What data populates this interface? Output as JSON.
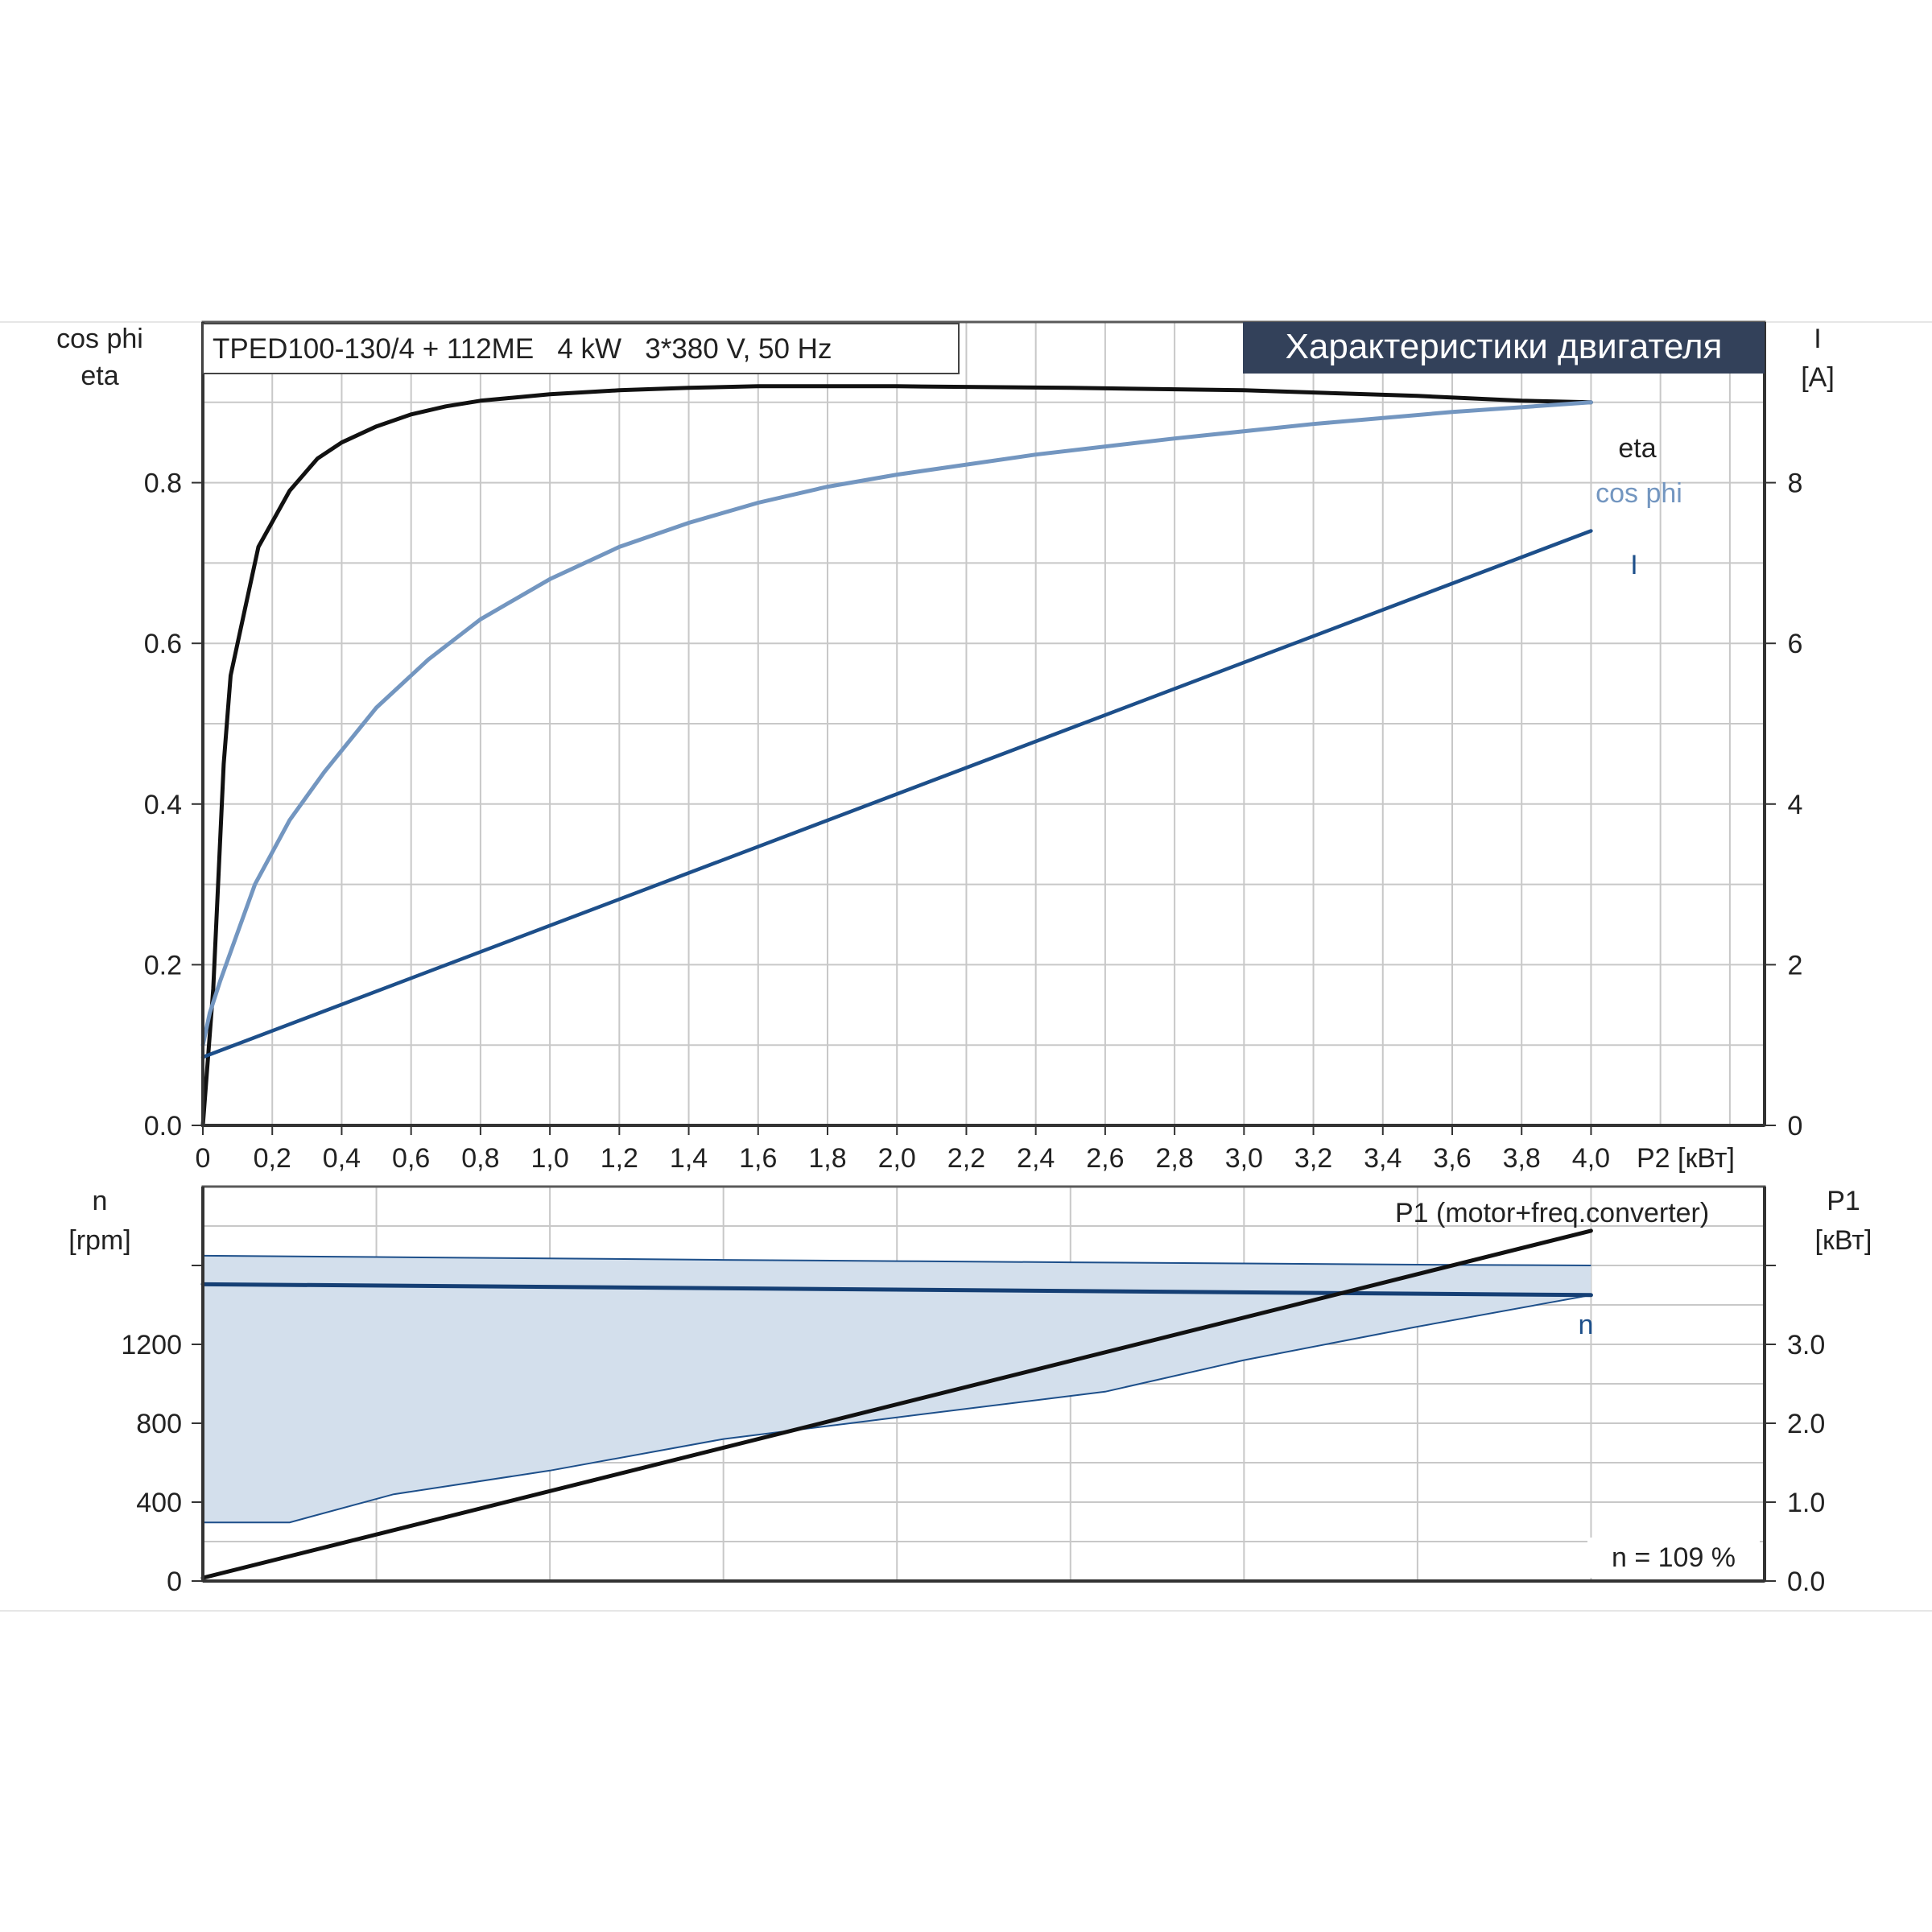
{
  "colors": {
    "background": "#ffffff",
    "grid": "#c8c8c8",
    "frame": "#5a5a5a",
    "eta": "#111111",
    "cosphi": "#7396c0",
    "current": "#1d4f8a",
    "speed": "#153f74",
    "band_fill": "#d3dfec",
    "band_edge": "#1d4f8a",
    "p1": "#111111",
    "title_bg": "#33415a",
    "title_text": "#ffffff",
    "text": "#222222"
  },
  "header": {
    "model": "TPED100-130/4 + 112ME   4 kW   3*380 V, 50 Hz",
    "title": "Характеристики двигателя"
  },
  "chart_data": [
    {
      "type": "line",
      "id": "motor-characteristics",
      "title": "Характеристики двигателя",
      "xlabel": "P2 [кВт]",
      "ylabel_left": [
        "cos phi",
        "eta"
      ],
      "ylabel_right": [
        "I",
        "[A]"
      ],
      "xlim": [
        0,
        4.5
      ],
      "ylim_left": [
        0,
        1.0
      ],
      "ylim_right": [
        0,
        10
      ],
      "x_ticks": [
        "0",
        "0,2",
        "0,4",
        "0,6",
        "0,8",
        "1,0",
        "1,2",
        "1,4",
        "1,6",
        "1,8",
        "2,0",
        "2,2",
        "2,4",
        "2,6",
        "2,8",
        "3,0",
        "3,2",
        "3,4",
        "3,6",
        "3,8",
        "4,0"
      ],
      "y_ticks_left": [
        "0.0",
        "0.2",
        "0.4",
        "0.6",
        "0.8"
      ],
      "y_ticks_right": [
        "0",
        "2",
        "4",
        "6",
        "8"
      ],
      "grid": true,
      "series": [
        {
          "name": "eta",
          "axis": "left",
          "x": [
            0,
            0.03,
            0.06,
            0.08,
            0.12,
            0.16,
            0.25,
            0.33,
            0.4,
            0.5,
            0.6,
            0.7,
            0.8,
            1.0,
            1.2,
            1.4,
            1.6,
            1.8,
            2.0,
            2.5,
            3.0,
            3.5,
            3.8,
            4.0
          ],
          "y": [
            0,
            0.17,
            0.45,
            0.56,
            0.64,
            0.72,
            0.79,
            0.83,
            0.85,
            0.87,
            0.885,
            0.895,
            0.902,
            0.91,
            0.915,
            0.918,
            0.92,
            0.92,
            0.92,
            0.918,
            0.915,
            0.908,
            0.902,
            0.9
          ]
        },
        {
          "name": "cos phi",
          "axis": "left",
          "x": [
            0,
            0.02,
            0.05,
            0.1,
            0.15,
            0.25,
            0.35,
            0.5,
            0.65,
            0.8,
            1.0,
            1.2,
            1.4,
            1.6,
            1.8,
            2.0,
            2.4,
            2.8,
            3.2,
            3.6,
            4.0
          ],
          "y": [
            0.1,
            0.14,
            0.18,
            0.24,
            0.3,
            0.38,
            0.44,
            0.52,
            0.58,
            0.63,
            0.68,
            0.72,
            0.75,
            0.775,
            0.795,
            0.81,
            0.835,
            0.855,
            0.873,
            0.888,
            0.9
          ]
        },
        {
          "name": "I",
          "axis": "right",
          "x": [
            0,
            4.0
          ],
          "y": [
            0.85,
            7.4
          ]
        }
      ],
      "annotations": [
        "eta",
        "cos phi",
        "I"
      ]
    },
    {
      "type": "area",
      "id": "speed-power",
      "xlabel": "",
      "ylabel_left": [
        "n",
        "[rpm]"
      ],
      "ylabel_right": [
        "P1",
        "[кВт]"
      ],
      "xlim": [
        0,
        4.5
      ],
      "ylim_left": [
        0,
        2000
      ],
      "ylim_right": [
        0,
        5.0
      ],
      "y_ticks_left": [
        "0",
        "400",
        "800",
        "1200"
      ],
      "y_ticks_right": [
        "0.0",
        "1.0",
        "2.0",
        "3.0"
      ],
      "grid": true,
      "series": [
        {
          "name": "n",
          "axis": "left",
          "x": [
            0,
            4.0
          ],
          "y": [
            1505,
            1450
          ]
        },
        {
          "name": "P1 (motor+freq.converter)",
          "axis": "right",
          "x": [
            0,
            4.0
          ],
          "y": [
            0.04,
            4.44
          ]
        }
      ],
      "band": {
        "x_upper": [
          0,
          0.5,
          1.0,
          1.5,
          2.0,
          2.5,
          3.0,
          3.5,
          4.0
        ],
        "upper": [
          1650,
          1643,
          1636,
          1628,
          1622,
          1616,
          1610,
          1604,
          1600
        ],
        "x_lower": [
          0,
          0.25,
          0.55,
          1.0,
          1.5,
          2.0,
          2.6,
          3.0,
          3.5,
          4.0
        ],
        "lower": [
          297,
          297,
          440,
          560,
          720,
          830,
          960,
          1120,
          1290,
          1450
        ]
      },
      "annotations": [
        "P1 (motor+freq.converter)",
        "n",
        "n = 109 %"
      ]
    }
  ]
}
